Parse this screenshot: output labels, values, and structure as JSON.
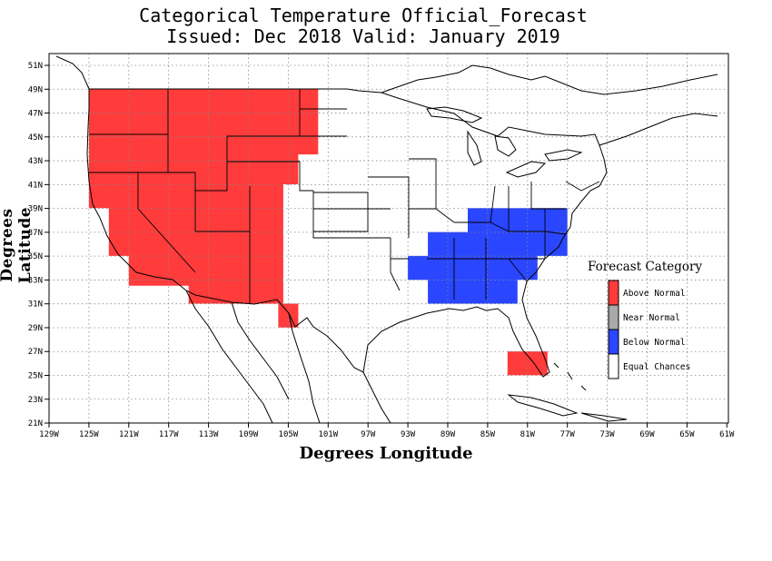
{
  "title": "Categorical Temperature Official_Forecast",
  "subtitle": "Issued: Dec 2018 Valid: January 2019",
  "xlabel": "Degrees Longitude",
  "ylabel": "Degrees Latitude",
  "x_ticks": [
    "129W",
    "125W",
    "121W",
    "117W",
    "113W",
    "109W",
    "105W",
    "101W",
    "97W",
    "93W",
    "89W",
    "85W",
    "81W",
    "77W",
    "73W",
    "69W",
    "65W",
    "61W"
  ],
  "y_ticks": [
    "51N",
    "49N",
    "47N",
    "45N",
    "43N",
    "41N",
    "39N",
    "37N",
    "35N",
    "33N",
    "31N",
    "29N",
    "27N",
    "25N",
    "23N",
    "21N"
  ],
  "legend": {
    "title": "Forecast Category",
    "items": [
      {
        "label": "Above Normal",
        "color": "#ff3b3b"
      },
      {
        "label": "Near Normal",
        "color": "#a9a9a9"
      },
      {
        "label": "Below Normal",
        "color": "#2a46ff"
      },
      {
        "label": "Equal Chances",
        "color": "#ffffff"
      }
    ]
  },
  "map_extent": {
    "lon": [
      -129,
      -61
    ],
    "lat": [
      21,
      52
    ]
  },
  "regions": {
    "above_normal_west": [
      [
        -125,
        49
      ],
      [
        -102,
        49
      ],
      [
        -102,
        43.5
      ],
      [
        -104,
        43.5
      ],
      [
        -104,
        41
      ],
      [
        -105.5,
        41
      ],
      [
        -105.5,
        31
      ],
      [
        -104,
        31
      ],
      [
        -104,
        29
      ],
      [
        -106,
        29
      ],
      [
        -106,
        31
      ],
      [
        -112,
        31
      ],
      [
        -115,
        31
      ],
      [
        -115,
        32.5
      ],
      [
        -121,
        32.5
      ],
      [
        -121,
        35
      ],
      [
        -123,
        35
      ],
      [
        -123,
        39
      ],
      [
        -125,
        39
      ]
    ],
    "above_normal_florida": [
      [
        -83,
        27
      ],
      [
        -79,
        27
      ],
      [
        -79,
        25
      ],
      [
        -83,
        25
      ]
    ],
    "below_normal_east": [
      [
        -87,
        39
      ],
      [
        -77,
        39
      ],
      [
        -77,
        35
      ],
      [
        -80,
        35
      ],
      [
        -80,
        33
      ],
      [
        -82,
        33
      ],
      [
        -82,
        31
      ],
      [
        -85,
        31
      ],
      [
        -85,
        31
      ],
      [
        -91,
        31
      ],
      [
        -91,
        33
      ],
      [
        -93,
        33
      ],
      [
        -93,
        35
      ],
      [
        -91,
        35
      ],
      [
        -91,
        37
      ],
      [
        -87,
        37
      ]
    ]
  }
}
